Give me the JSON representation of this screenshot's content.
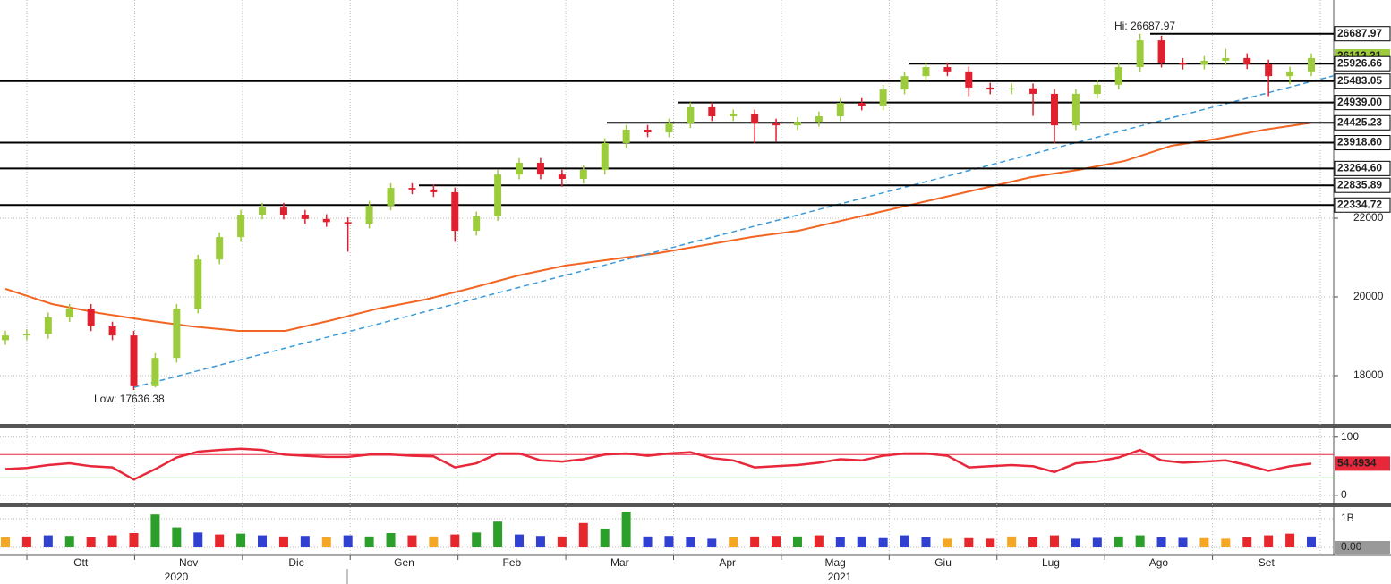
{
  "chart_data": [
    {
      "type": "candlestick",
      "open": [
        18900,
        19020,
        19060,
        19480,
        19700,
        19250,
        19020,
        17730,
        18450,
        19700,
        20950,
        21520,
        22090,
        22270,
        22090,
        21980,
        21900,
        21860,
        22320,
        22770,
        22730,
        22660,
        21680,
        22050,
        23110,
        23410,
        23110,
        23000,
        23230,
        23910,
        24250,
        24180,
        24410,
        24820,
        24590,
        24640,
        24410,
        24360,
        24450,
        24590,
        24930,
        24860,
        25270,
        25610,
        25840,
        25730,
        25320,
        25270,
        25300,
        25160,
        24360,
        25160,
        25390,
        25840,
        26520,
        25950,
        25900,
        26000,
        26070,
        25910,
        25610,
        25730
      ],
      "high": [
        19140,
        19180,
        19600,
        19820,
        19820,
        19370,
        19140,
        18570,
        19820,
        21070,
        21640,
        22210,
        22390,
        22390,
        22210,
        22100,
        22020,
        22440,
        22890,
        22890,
        22850,
        22780,
        22170,
        23230,
        23530,
        23530,
        23230,
        23350,
        24030,
        24370,
        24370,
        24530,
        24940,
        24940,
        24760,
        24760,
        24530,
        24570,
        24710,
        25050,
        25050,
        25390,
        25730,
        25960,
        25960,
        25850,
        25440,
        25420,
        25420,
        25280,
        25280,
        25510,
        25960,
        26687.97,
        26640,
        26070,
        26120,
        26300,
        26190,
        26030,
        25850,
        26190
      ],
      "low": [
        18780,
        18900,
        18940,
        19360,
        19130,
        18900,
        17636.38,
        17700,
        18330,
        19580,
        20830,
        21400,
        21970,
        21970,
        21860,
        21780,
        21150,
        21740,
        22200,
        22610,
        22540,
        21400,
        21560,
        21930,
        22990,
        22990,
        22800,
        22880,
        23110,
        23790,
        24060,
        24060,
        24290,
        24470,
        24470,
        23900,
        23950,
        24240,
        24330,
        24470,
        24740,
        24740,
        25150,
        25490,
        25610,
        25100,
        25150,
        25150,
        24600,
        23900,
        24240,
        25040,
        25270,
        25720,
        25830,
        25780,
        25780,
        25880,
        25790,
        25100,
        25400,
        25610
      ],
      "close": [
        19020,
        19060,
        19480,
        19700,
        19250,
        19020,
        17730,
        18450,
        19700,
        20950,
        21520,
        22090,
        22270,
        22090,
        21980,
        21900,
        21860,
        22320,
        22770,
        22730,
        22660,
        21680,
        22050,
        23110,
        23410,
        23110,
        23000,
        23230,
        23910,
        24250,
        24180,
        24410,
        24820,
        24590,
        24640,
        24410,
        24360,
        24450,
        24590,
        24930,
        24860,
        25270,
        25610,
        25840,
        25730,
        25320,
        25270,
        25300,
        25160,
        24360,
        25160,
        25390,
        25840,
        26520,
        25950,
        25900,
        26000,
        26070,
        25910,
        25610,
        25730,
        26070
      ],
      "up_color": "#9ccc3c",
      "down_color": "#e0202e",
      "ylim": [
        16795,
        27545
      ],
      "yticks": [
        18000,
        20000,
        22000
      ],
      "grid": true,
      "moving_average": {
        "color": "#f26522",
        "values": [
          20205,
          19818,
          19591,
          19409,
          19250,
          19136,
          19136,
          19409,
          19705,
          19932,
          20227,
          20545,
          20795,
          20955,
          21114,
          21318,
          21523,
          21682,
          21955,
          22227,
          22500,
          22773,
          23045,
          23227,
          23455,
          23841,
          24023,
          24250,
          24425.23
        ]
      },
      "trendline": {
        "color": "#3a9ad9",
        "values": [
          17700,
          25620
        ]
      },
      "levels": [
        26687.97,
        25926.66,
        25483.05,
        {
          "value": 24939,
          "label": "24939.00"
        },
        24425.23,
        {
          "value": 23918.6,
          "label": "23918.60"
        },
        {
          "value": 23264.6,
          "label": "23264.60"
        },
        22835.89,
        22334.72
      ],
      "level_color": "#000000",
      "last_price": 26113.21,
      "last_price_color": "#9ccc3c",
      "annotations": [
        "Hi: 26687.97",
        "Low: 17636.38"
      ],
      "annotation_color": "#9ccc3c"
    },
    {
      "type": "line",
      "values": [
        45,
        47,
        52,
        55,
        50,
        48,
        27,
        45,
        65,
        75,
        78,
        80,
        78,
        70,
        68,
        66,
        66,
        70,
        70,
        68,
        67,
        48,
        55,
        72,
        72,
        60,
        58,
        62,
        70,
        72,
        68,
        72,
        74,
        64,
        60,
        48,
        50,
        52,
        56,
        62,
        60,
        68,
        72,
        72,
        68,
        48,
        50,
        52,
        50,
        40,
        55,
        58,
        65,
        78,
        60,
        56,
        58,
        60,
        52,
        42,
        50,
        54.4934
      ],
      "color": "#e8273a",
      "ylim": [
        -11,
        115
      ],
      "yticks": [
        0,
        100
      ],
      "ref_lines": [
        {
          "value": 70,
          "color": "#e8273a"
        },
        {
          "value": 30,
          "color": "#3fbf3f"
        }
      ]
    },
    {
      "type": "bar",
      "values": [
        350000000,
        380000000,
        420000000,
        400000000,
        360000000,
        420000000,
        500000000,
        1150000000,
        700000000,
        520000000,
        450000000,
        480000000,
        420000000,
        380000000,
        400000000,
        360000000,
        420000000,
        380000000,
        500000000,
        420000000,
        380000000,
        450000000,
        520000000,
        900000000,
        450000000,
        400000000,
        380000000,
        850000000,
        650000000,
        1250000000,
        380000000,
        400000000,
        350000000,
        300000000,
        350000000,
        380000000,
        400000000,
        380000000,
        420000000,
        350000000,
        380000000,
        320000000,
        420000000,
        350000000,
        300000000,
        320000000,
        300000000,
        380000000,
        350000000,
        420000000,
        300000000,
        330000000,
        380000000,
        420000000,
        350000000,
        330000000,
        320000000,
        300000000,
        360000000,
        420000000,
        480000000,
        380000000
      ],
      "colors": [
        "#f5a623",
        "#e8272c",
        "#3040d0",
        "#2aa02a",
        "#e8272c",
        "#e8272c",
        "#e8272c",
        "#2aa02a",
        "#2aa02a",
        "#3040d0",
        "#e8272c",
        "#2aa02a",
        "#3040d0",
        "#e8272c",
        "#3040d0",
        "#f5a623",
        "#3040d0",
        "#2aa02a",
        "#2aa02a",
        "#e8272c",
        "#f5a623",
        "#e8272c",
        "#2aa02a",
        "#2aa02a",
        "#3040d0",
        "#3040d0",
        "#e8272c",
        "#e8272c",
        "#2aa02a",
        "#2aa02a",
        "#3040d0",
        "#3040d0",
        "#3040d0",
        "#3040d0",
        "#f5a623",
        "#e8272c",
        "#e8272c",
        "#2aa02a",
        "#e8272c",
        "#3040d0",
        "#3040d0",
        "#3040d0",
        "#3040d0",
        "#3040d0",
        "#f5a623",
        "#e8272c",
        "#e8272c",
        "#f5a623",
        "#e8272c",
        "#e8272c",
        "#3040d0",
        "#3040d0",
        "#2aa02a",
        "#2aa02a",
        "#3040d0",
        "#3040d0",
        "#f5a623",
        "#f5a623",
        "#e8272c",
        "#e8272c",
        "#e8272c",
        "#3040d0"
      ],
      "ylim": [
        -250000000,
        1375000000
      ],
      "yticks": [
        {
          "value": 1000000000,
          "label": "1B"
        },
        {
          "value": 0,
          "label": "0.00"
        }
      ],
      "x_labels": [
        "Ott",
        "Nov",
        "Dic",
        "Gen",
        "Feb",
        "Mar",
        "Apr",
        "Mag",
        "Giu",
        "Lug",
        "Ago",
        "Set"
      ],
      "x_group_labels": [
        "2020",
        "2021"
      ]
    }
  ]
}
